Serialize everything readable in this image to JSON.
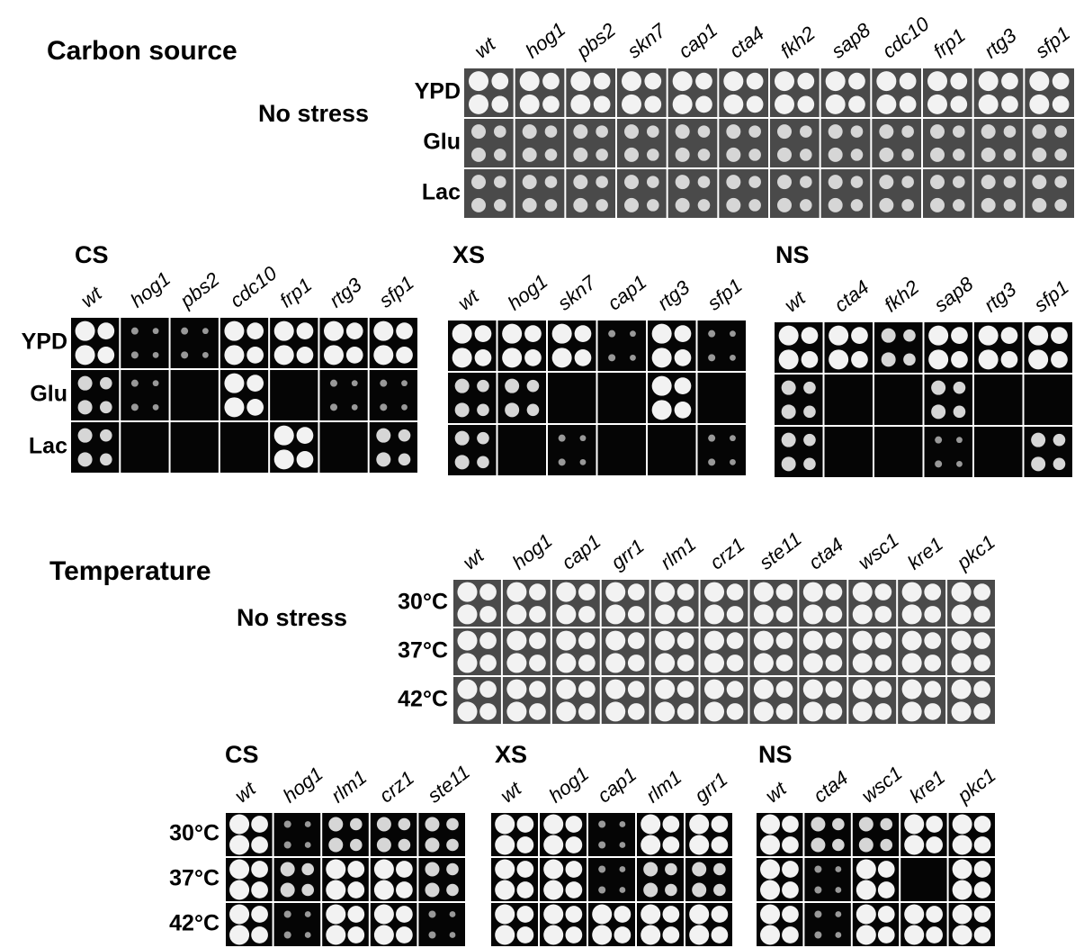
{
  "sections": [
    {
      "title": "Carbon source",
      "no_stress": {
        "label": "No stress",
        "strains": [
          "wt",
          "hog1",
          "pbs2",
          "skn7",
          "cap1",
          "cta4",
          "fkh2",
          "sap8",
          "cdc10",
          "frp1",
          "rtg3",
          "sfp1"
        ],
        "conditions": [
          "YPD",
          "Glu",
          "Lac"
        ]
      },
      "panels": [
        {
          "title": "CS",
          "strains": [
            "wt",
            "hog1",
            "pbs2",
            "cdc10",
            "frp1",
            "rtg3",
            "sfp1"
          ],
          "conditions": [
            "YPD",
            "Glu",
            "Lac"
          ]
        },
        {
          "title": "XS",
          "strains": [
            "wt",
            "hog1",
            "skn7",
            "cap1",
            "rtg3",
            "sfp1"
          ]
        },
        {
          "title": "NS",
          "strains": [
            "wt",
            "cta4",
            "fkh2",
            "sap8",
            "rtg3",
            "sfp1"
          ]
        }
      ]
    },
    {
      "title": "Temperature",
      "no_stress": {
        "label": "No stress",
        "strains": [
          "wt",
          "hog1",
          "cap1",
          "grr1",
          "rlm1",
          "crz1",
          "ste11",
          "cta4",
          "wsc1",
          "kre1",
          "pkc1"
        ],
        "conditions": [
          "30°C",
          "37°C",
          "42°C"
        ]
      },
      "panels": [
        {
          "title": "CS",
          "strains": [
            "wt",
            "hog1",
            "rlm1",
            "crz1",
            "ste11"
          ],
          "conditions": [
            "30°C",
            "37°C",
            "42°C"
          ]
        },
        {
          "title": "XS",
          "strains": [
            "wt",
            "hog1",
            "cap1",
            "rlm1",
            "grr1"
          ]
        },
        {
          "title": "NS",
          "strains": [
            "wt",
            "cta4",
            "wsc1",
            "kre1",
            "pkc1"
          ]
        }
      ]
    }
  ]
}
